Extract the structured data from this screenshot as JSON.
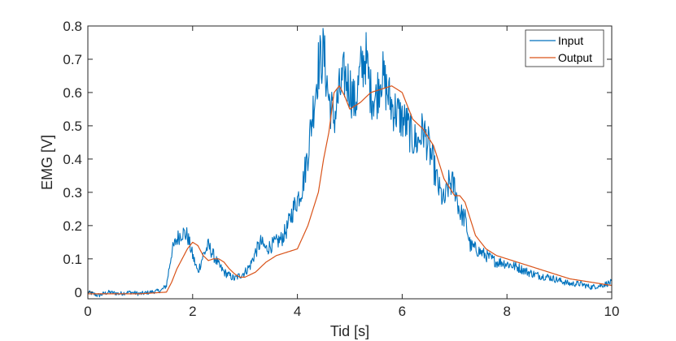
{
  "chart_data": {
    "type": "line",
    "title": "",
    "xlabel": "Tid [s]",
    "ylabel": "EMG [V]",
    "xlim": [
      0,
      10
    ],
    "ylim": [
      -0.02,
      0.8
    ],
    "xticks": [
      0,
      2,
      4,
      6,
      8,
      10
    ],
    "yticks": [
      0,
      0.1,
      0.2,
      0.3,
      0.4,
      0.5,
      0.6,
      0.7,
      0.8
    ],
    "grid": false,
    "legend_position": "top-right",
    "series": [
      {
        "name": "Input",
        "color": "#0072BD",
        "x": [
          0,
          0.2,
          0.4,
          0.6,
          0.8,
          1.0,
          1.2,
          1.4,
          1.5,
          1.6,
          1.7,
          1.8,
          1.9,
          2.0,
          2.1,
          2.2,
          2.3,
          2.4,
          2.5,
          2.6,
          2.7,
          2.8,
          2.9,
          3.0,
          3.1,
          3.2,
          3.3,
          3.4,
          3.5,
          3.6,
          3.7,
          3.8,
          3.9,
          4.0,
          4.1,
          4.2,
          4.3,
          4.4,
          4.5,
          4.6,
          4.7,
          4.8,
          4.9,
          5.0,
          5.1,
          5.2,
          5.3,
          5.4,
          5.5,
          5.6,
          5.7,
          5.8,
          5.9,
          6.0,
          6.1,
          6.2,
          6.3,
          6.4,
          6.5,
          6.6,
          6.7,
          6.8,
          6.9,
          7.0,
          7.1,
          7.2,
          7.3,
          7.4,
          7.5,
          7.6,
          7.7,
          7.8,
          7.9,
          8.0,
          8.2,
          8.4,
          8.6,
          8.8,
          9.0,
          9.2,
          9.4,
          9.6,
          9.8,
          10.0
        ],
        "values": [
          0.0,
          -0.01,
          0.0,
          -0.005,
          0.0,
          -0.005,
          0.0,
          0.005,
          0.02,
          0.12,
          0.16,
          0.18,
          0.17,
          0.11,
          0.06,
          0.11,
          0.14,
          0.11,
          0.08,
          0.06,
          0.05,
          0.04,
          0.05,
          0.06,
          0.08,
          0.12,
          0.15,
          0.13,
          0.14,
          0.15,
          0.16,
          0.19,
          0.24,
          0.28,
          0.32,
          0.42,
          0.55,
          0.68,
          0.72,
          0.58,
          0.52,
          0.6,
          0.65,
          0.62,
          0.56,
          0.66,
          0.71,
          0.6,
          0.58,
          0.66,
          0.61,
          0.56,
          0.54,
          0.52,
          0.5,
          0.46,
          0.45,
          0.49,
          0.44,
          0.38,
          0.31,
          0.27,
          0.33,
          0.32,
          0.24,
          0.22,
          0.14,
          0.13,
          0.12,
          0.11,
          0.1,
          0.09,
          0.09,
          0.085,
          0.075,
          0.06,
          0.05,
          0.045,
          0.035,
          0.025,
          0.025,
          0.015,
          0.02,
          0.03
        ]
      },
      {
        "name": "Output",
        "color": "#D95319",
        "x": [
          0,
          0.5,
          1.0,
          1.5,
          1.6,
          1.7,
          1.8,
          1.9,
          2.0,
          2.1,
          2.2,
          2.3,
          2.4,
          2.5,
          2.6,
          2.7,
          2.8,
          2.9,
          3.0,
          3.2,
          3.4,
          3.6,
          3.8,
          4.0,
          4.2,
          4.4,
          4.5,
          4.6,
          4.7,
          4.8,
          4.9,
          5.0,
          5.2,
          5.4,
          5.6,
          5.8,
          6.0,
          6.1,
          6.2,
          6.4,
          6.6,
          6.8,
          7.0,
          7.1,
          7.2,
          7.3,
          7.4,
          7.6,
          7.8,
          8.0,
          8.4,
          8.8,
          9.2,
          9.6,
          10.0
        ],
        "values": [
          -0.005,
          -0.005,
          -0.005,
          0.0,
          0.03,
          0.07,
          0.1,
          0.13,
          0.15,
          0.14,
          0.11,
          0.095,
          0.1,
          0.1,
          0.09,
          0.07,
          0.055,
          0.045,
          0.045,
          0.06,
          0.09,
          0.11,
          0.12,
          0.13,
          0.2,
          0.3,
          0.4,
          0.48,
          0.6,
          0.62,
          0.59,
          0.55,
          0.57,
          0.6,
          0.61,
          0.62,
          0.6,
          0.56,
          0.52,
          0.49,
          0.44,
          0.34,
          0.29,
          0.29,
          0.27,
          0.22,
          0.17,
          0.13,
          0.11,
          0.1,
          0.08,
          0.06,
          0.04,
          0.03,
          0.02
        ]
      }
    ]
  }
}
